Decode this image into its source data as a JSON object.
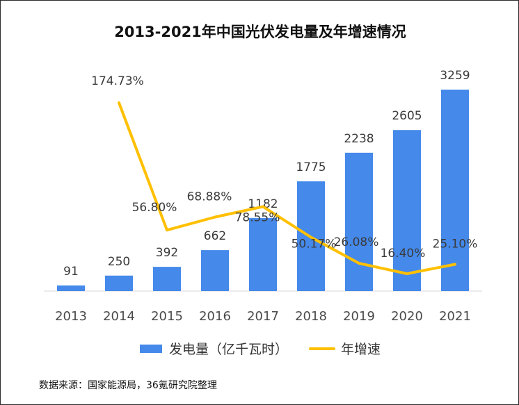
{
  "chart_data": {
    "type": "bar",
    "title": "2013-2021年中国光伏发电量及年增速情况",
    "categories": [
      "2013",
      "2014",
      "2015",
      "2016",
      "2017",
      "2018",
      "2019",
      "2020",
      "2021"
    ],
    "series": [
      {
        "name": "发电量（亿千瓦时）",
        "type": "bar",
        "color": "#4589ea",
        "values": [
          91,
          250,
          392,
          662,
          1182,
          1775,
          2238,
          2605,
          3259
        ],
        "labels": [
          "91",
          "250",
          "392",
          "662",
          "1182",
          "1775",
          "2238",
          "2605",
          "3259"
        ]
      },
      {
        "name": "年增速",
        "type": "line",
        "color": "#ffc000",
        "values": [
          null,
          174.73,
          56.8,
          68.88,
          78.55,
          50.17,
          26.08,
          16.4,
          25.1
        ],
        "labels": [
          "",
          "174.73%",
          "56.80%",
          "68.88%",
          "78.55%",
          "50.17%",
          "26.08%",
          "16.40%",
          "25.10%"
        ]
      }
    ],
    "legend": "bottom",
    "grid": false
  },
  "source": "数据来源：国家能源局，36氪研究院整理"
}
